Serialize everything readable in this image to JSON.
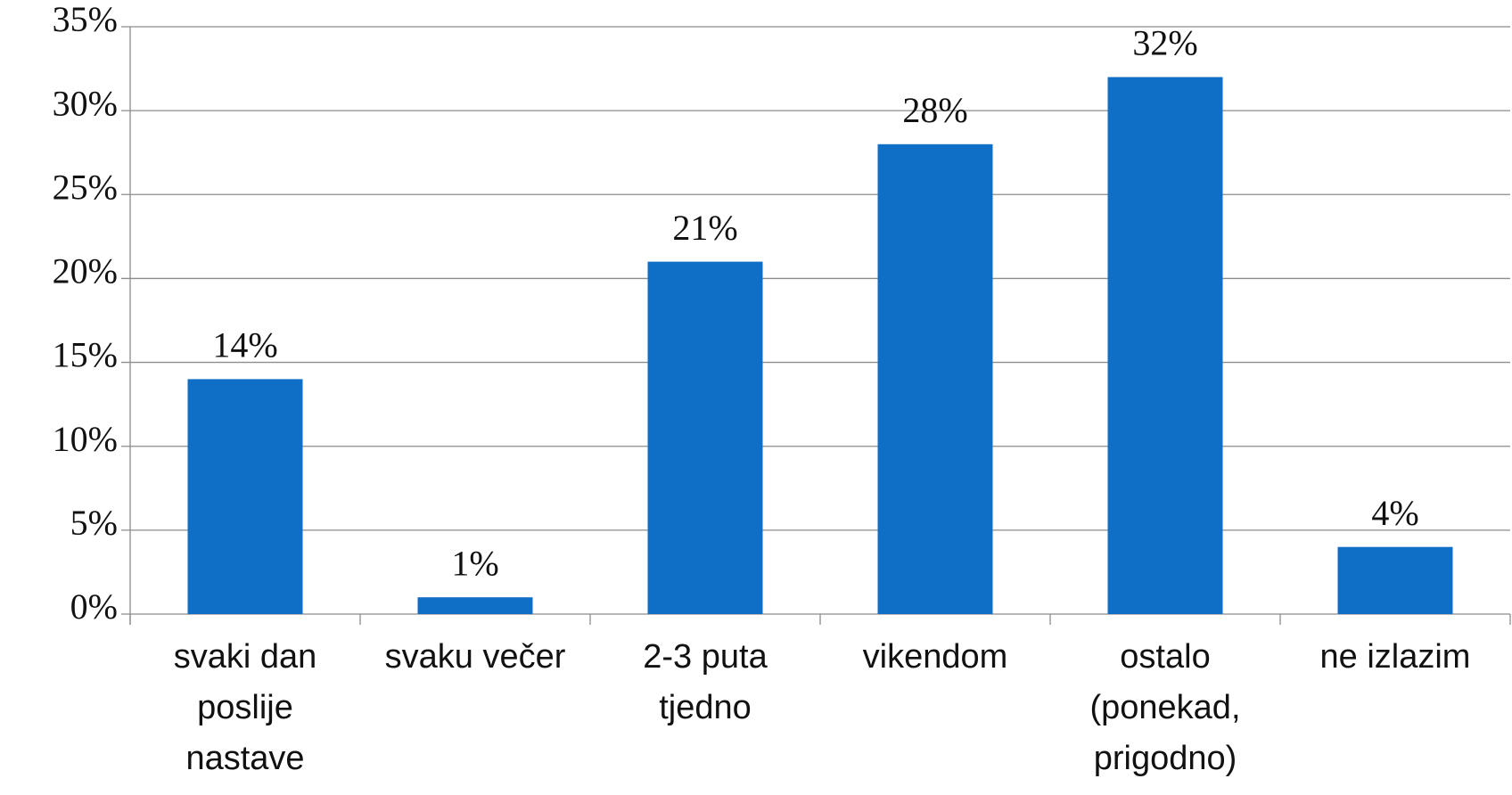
{
  "chart_data": {
    "type": "bar",
    "categories": [
      "svaki dan poslije nastave",
      "svaku večer",
      "2-3 puta tjedno",
      "vikendom",
      "ostalo (ponekad, prigodno)",
      "ne izlazim"
    ],
    "values": [
      14,
      1,
      21,
      28,
      32,
      4
    ],
    "value_labels": [
      "14%",
      "1%",
      "21%",
      "28%",
      "32%",
      "4%"
    ],
    "color": "#0f6fc6",
    "ylim": [
      0,
      35
    ],
    "yticks": [
      {
        "value": 0,
        "label": "0%"
      },
      {
        "value": 5,
        "label": "5%"
      },
      {
        "value": 10,
        "label": "10%"
      },
      {
        "value": 15,
        "label": "15%"
      },
      {
        "value": 20,
        "label": "20%"
      },
      {
        "value": 25,
        "label": "25%"
      },
      {
        "value": 30,
        "label": "30%"
      },
      {
        "value": 35,
        "label": "35%"
      }
    ],
    "grid": true
  }
}
